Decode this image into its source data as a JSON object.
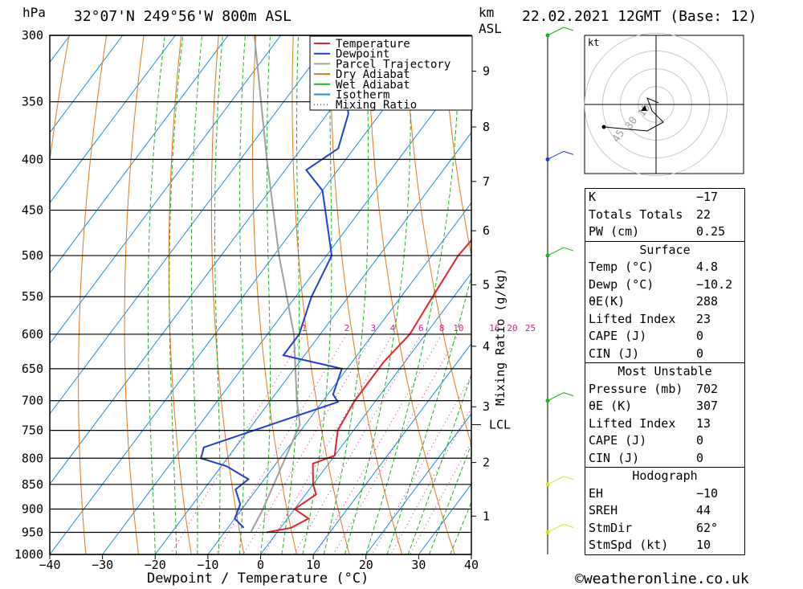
{
  "header": {
    "location": "32°07'N  249°56'W  800m  ASL",
    "datetime": "22.02.2021  12GMT  (Base: 12)",
    "p_unit": "hPa",
    "km_unit": "km",
    "asl_unit": "ASL"
  },
  "chart_data": {
    "type": "skew-t log-p",
    "xlabel": "Dewpoint / Temperature (°C)",
    "ylabel": "hPa",
    "right_axis_label": "Mixing Ratio (g/kg)",
    "xlim": [
      -40,
      40
    ],
    "ylim": [
      1000,
      300
    ],
    "x_ticks": [
      -40,
      -30,
      -20,
      -10,
      0,
      10,
      20,
      30,
      40
    ],
    "x_tick_labels": [
      "−40",
      "−30",
      "−20",
      "−10",
      "0",
      "10",
      "20",
      "30",
      "40"
    ],
    "pressure_levels": [
      300,
      350,
      400,
      450,
      500,
      550,
      600,
      650,
      700,
      750,
      800,
      850,
      900,
      950,
      1000
    ],
    "km_ticks": [
      {
        "label": "9",
        "p": 326
      },
      {
        "label": "8",
        "p": 371
      },
      {
        "label": "7",
        "p": 421
      },
      {
        "label": "6",
        "p": 472
      },
      {
        "label": "5",
        "p": 535
      },
      {
        "label": "4",
        "p": 617
      },
      {
        "label": "3",
        "p": 710
      },
      {
        "label": "2",
        "p": 808
      },
      {
        "label": "1",
        "p": 915
      }
    ],
    "lcl": {
      "label": "LCL",
      "p": 740
    },
    "mixing_ratio_labels": [
      "1",
      "2",
      "3",
      "4",
      "6",
      "8",
      "10",
      "16",
      "20",
      "25"
    ],
    "mixing_ratios": [
      1,
      2,
      3,
      4,
      6,
      8,
      10,
      16,
      20,
      25
    ],
    "temperature": [
      {
        "p": 300,
        "t": -4
      },
      {
        "p": 350,
        "t": -2
      },
      {
        "p": 400,
        "t": -2
      },
      {
        "p": 425,
        "t": -5
      },
      {
        "p": 450,
        "t": -4
      },
      {
        "p": 500,
        "t": -5
      },
      {
        "p": 550,
        "t": -4
      },
      {
        "p": 600,
        "t": -3
      },
      {
        "p": 640,
        "t": -4
      },
      {
        "p": 700,
        "t": -4
      },
      {
        "p": 750,
        "t": -3
      },
      {
        "p": 795,
        "t": 0
      },
      {
        "p": 810,
        "t": -3
      },
      {
        "p": 850,
        "t": 0
      },
      {
        "p": 870,
        "t": 2
      },
      {
        "p": 900,
        "t": 0
      },
      {
        "p": 920,
        "t": 4
      },
      {
        "p": 940,
        "t": 2
      },
      {
        "p": 950,
        "t": -2
      }
    ],
    "dewpoint": [
      {
        "p": 300,
        "t": -58
      },
      {
        "p": 330,
        "t": -52
      },
      {
        "p": 360,
        "t": -46
      },
      {
        "p": 390,
        "t": -43
      },
      {
        "p": 410,
        "t": -46
      },
      {
        "p": 430,
        "t": -40
      },
      {
        "p": 500,
        "t": -29
      },
      {
        "p": 550,
        "t": -27
      },
      {
        "p": 600,
        "t": -24
      },
      {
        "p": 630,
        "t": -24
      },
      {
        "p": 650,
        "t": -11
      },
      {
        "p": 690,
        "t": -9
      },
      {
        "p": 702,
        "t": -7
      },
      {
        "p": 780,
        "t": -26
      },
      {
        "p": 800,
        "t": -25
      },
      {
        "p": 815,
        "t": -19
      },
      {
        "p": 840,
        "t": -13
      },
      {
        "p": 860,
        "t": -14
      },
      {
        "p": 890,
        "t": -11
      },
      {
        "p": 920,
        "t": -10
      },
      {
        "p": 940,
        "t": -7
      }
    ],
    "parcel": [
      {
        "p": 300,
        "t": -75
      },
      {
        "p": 400,
        "t": -55
      },
      {
        "p": 500,
        "t": -39
      },
      {
        "p": 600,
        "t": -25
      },
      {
        "p": 700,
        "t": -15
      },
      {
        "p": 740,
        "t": -11
      },
      {
        "p": 800,
        "t": -9
      },
      {
        "p": 900,
        "t": -6
      },
      {
        "p": 950,
        "t": -5
      }
    ],
    "legend": [
      {
        "label": "Temperature",
        "color": "#e8222a",
        "style": "solid"
      },
      {
        "label": "Dewpoint",
        "color": "#1f3fd8",
        "style": "solid"
      },
      {
        "label": "Parcel Trajectory",
        "color": "#a0a0a0",
        "style": "solid"
      },
      {
        "label": "Dry Adiabat",
        "color": "#e07818",
        "style": "solid"
      },
      {
        "label": "Wet Adiabat",
        "color": "#18b418",
        "style": "solid"
      },
      {
        "label": "Isotherm",
        "color": "#1890e0",
        "style": "solid"
      },
      {
        "label": "Mixing Ratio",
        "color": "#d0209a",
        "style": "dotted"
      }
    ]
  },
  "hodograph": {
    "unit": "kt",
    "ring_labels": [
      "15",
      "30",
      "45"
    ]
  },
  "stats": {
    "k_label": "K",
    "k": "−17",
    "tt_label": "Totals Totals",
    "tt": "22",
    "pw_label": "PW (cm)",
    "pw": "0.25",
    "surface_title": "Surface",
    "temp_label": "Temp (°C)",
    "temp": "4.8",
    "dewp_label": "Dewp (°C)",
    "dewp": "−10.2",
    "thetae_label": "θE(K)",
    "thetae": "288",
    "li_label": "Lifted Index",
    "li": "23",
    "cape_label": "CAPE (J)",
    "cape": "0",
    "cin_label": "CIN (J)",
    "cin": "0",
    "mu_title": "Most Unstable",
    "mu_p_label": "Pressure (mb)",
    "mu_p": "702",
    "mu_te_label": "θE (K)",
    "mu_te": "307",
    "mu_li_label": "Lifted Index",
    "mu_li": "13",
    "mu_cape_label": "CAPE (J)",
    "mu_cape": "0",
    "mu_cin_label": "CIN (J)",
    "mu_cin": "0",
    "hodo_title": "Hodograph",
    "eh_label": "EH",
    "eh": "−10",
    "sreh_label": "SREH",
    "sreh": "44",
    "stmdir_label": "StmDir",
    "stmdir": "62°",
    "stmspd_label": "StmSpd (kt)",
    "stmspd": "10"
  },
  "footer": {
    "copyright": "©weatheronline.co.uk"
  }
}
